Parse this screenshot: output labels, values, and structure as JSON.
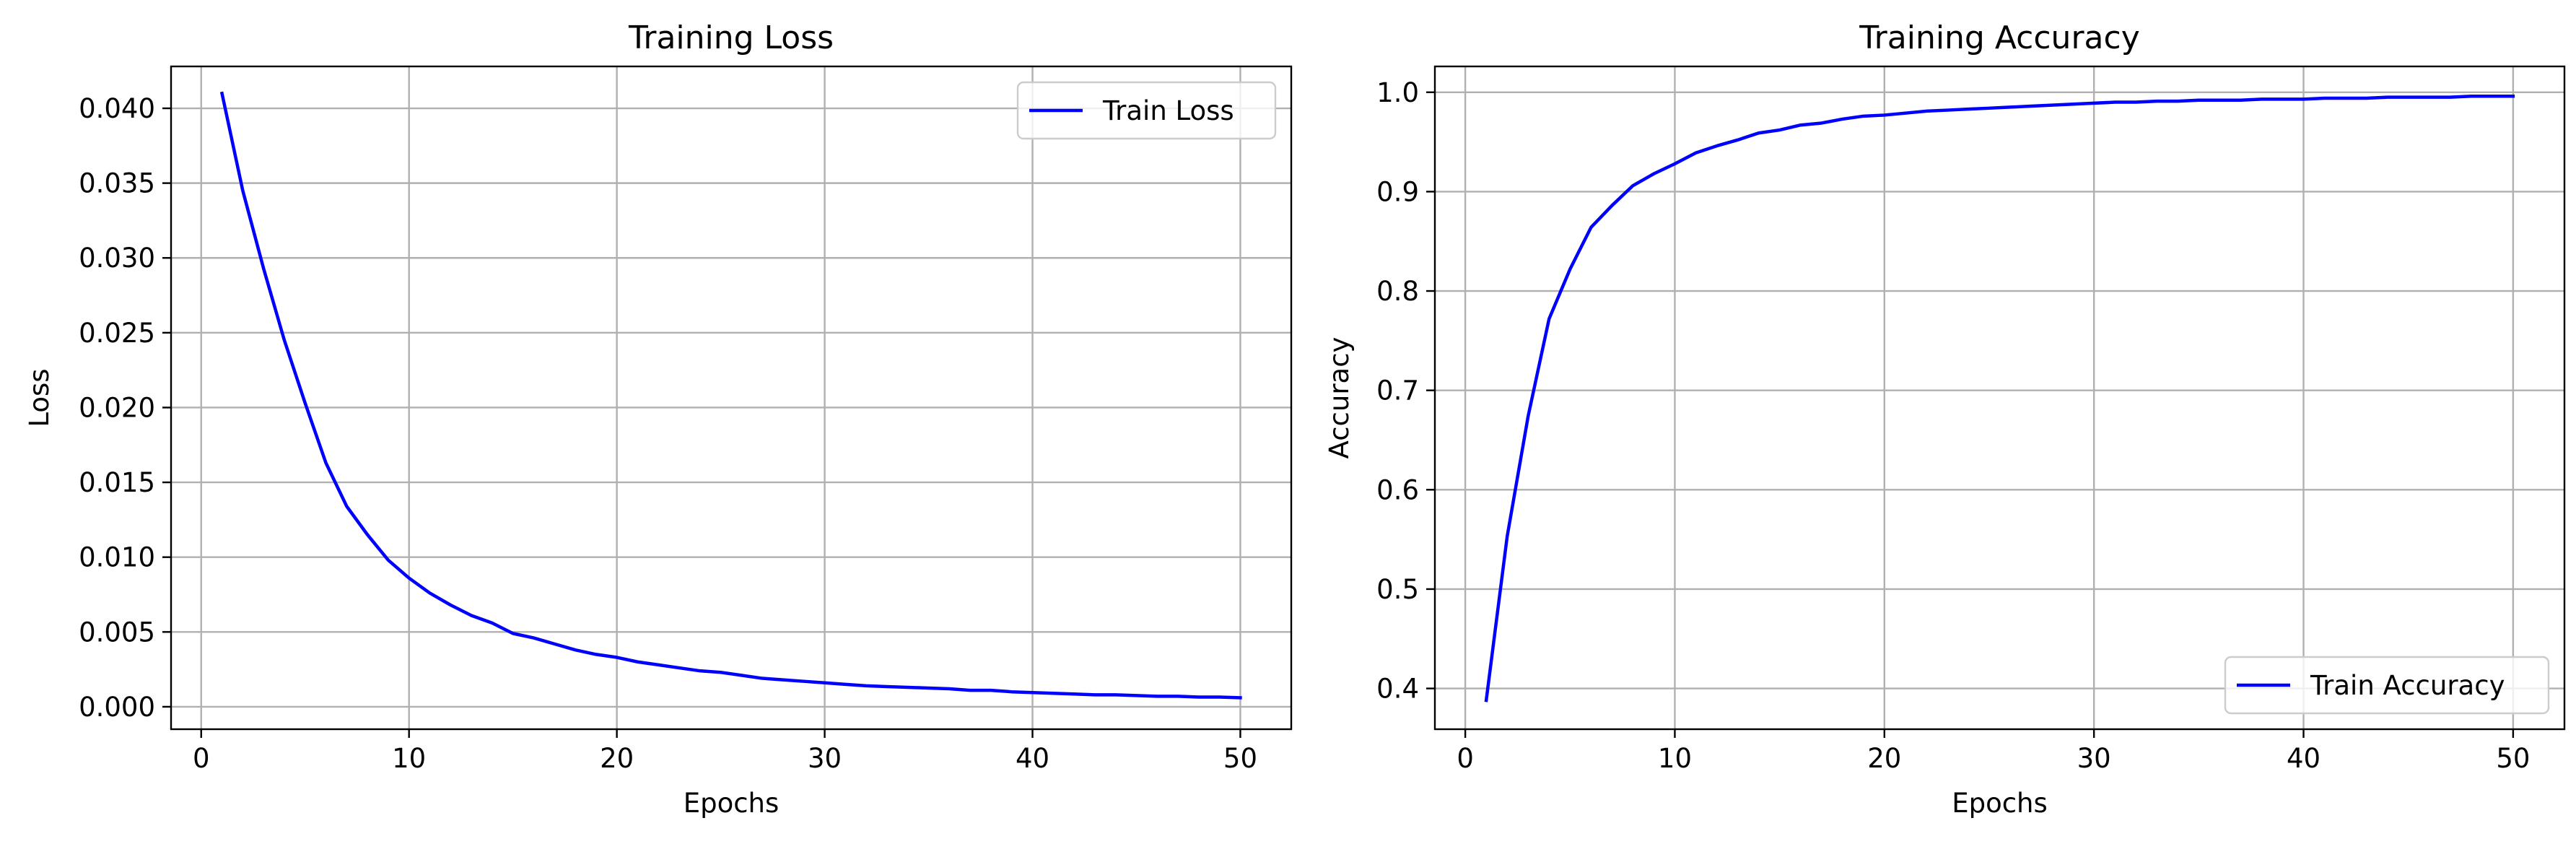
{
  "chart_data": [
    {
      "type": "line",
      "title": "Training Loss",
      "xlabel": "Epochs",
      "ylabel": "Loss",
      "xlim": [
        -1.45,
        52.45
      ],
      "ylim": [
        -0.0015,
        0.0428
      ],
      "xticks": [
        0,
        10,
        20,
        30,
        40,
        50
      ],
      "xtick_labels": [
        "0",
        "10",
        "20",
        "30",
        "40",
        "50"
      ],
      "yticks": [
        0.0,
        0.005,
        0.01,
        0.015,
        0.02,
        0.025,
        0.03,
        0.035,
        0.04
      ],
      "ytick_labels": [
        "0.000",
        "0.005",
        "0.010",
        "0.015",
        "0.020",
        "0.025",
        "0.030",
        "0.035",
        "0.040"
      ],
      "grid": true,
      "legend_position": "top-right",
      "x": [
        1,
        2,
        3,
        4,
        5,
        6,
        7,
        8,
        9,
        10,
        11,
        12,
        13,
        14,
        15,
        16,
        17,
        18,
        19,
        20,
        21,
        22,
        23,
        24,
        25,
        26,
        27,
        28,
        29,
        30,
        31,
        32,
        33,
        34,
        35,
        36,
        37,
        38,
        39,
        40,
        41,
        42,
        43,
        44,
        45,
        46,
        47,
        48,
        49,
        50
      ],
      "series": [
        {
          "name": "Train Loss",
          "color": "#0000ff",
          "values": [
            0.041,
            0.0345,
            0.0293,
            0.0245,
            0.0203,
            0.0163,
            0.0134,
            0.0115,
            0.0098,
            0.0086,
            0.0076,
            0.0068,
            0.0061,
            0.0056,
            0.0049,
            0.0046,
            0.0042,
            0.0038,
            0.0035,
            0.0033,
            0.003,
            0.0028,
            0.0026,
            0.0024,
            0.0023,
            0.0021,
            0.0019,
            0.0018,
            0.0017,
            0.0016,
            0.0015,
            0.0014,
            0.00135,
            0.0013,
            0.00125,
            0.0012,
            0.0011,
            0.0011,
            0.001,
            0.00095,
            0.0009,
            0.00085,
            0.0008,
            0.0008,
            0.00075,
            0.0007,
            0.0007,
            0.00065,
            0.00065,
            0.0006
          ]
        }
      ]
    },
    {
      "type": "line",
      "title": "Training Accuracy",
      "xlabel": "Epochs",
      "ylabel": "Accuracy",
      "xlim": [
        -1.45,
        52.45
      ],
      "ylim": [
        0.359,
        1.026
      ],
      "xticks": [
        0,
        10,
        20,
        30,
        40,
        50
      ],
      "xtick_labels": [
        "0",
        "10",
        "20",
        "30",
        "40",
        "50"
      ],
      "yticks": [
        0.4,
        0.5,
        0.6,
        0.7,
        0.8,
        0.9,
        1.0
      ],
      "ytick_labels": [
        "0.4",
        "0.5",
        "0.6",
        "0.7",
        "0.8",
        "0.9",
        "1.0"
      ],
      "grid": true,
      "legend_position": "bottom-right",
      "x": [
        1,
        2,
        3,
        4,
        5,
        6,
        7,
        8,
        9,
        10,
        11,
        12,
        13,
        14,
        15,
        16,
        17,
        18,
        19,
        20,
        21,
        22,
        23,
        24,
        25,
        26,
        27,
        28,
        29,
        30,
        31,
        32,
        33,
        34,
        35,
        36,
        37,
        38,
        39,
        40,
        41,
        42,
        43,
        44,
        45,
        46,
        47,
        48,
        49,
        50
      ],
      "series": [
        {
          "name": "Train Accuracy",
          "color": "#0000ff",
          "values": [
            0.388,
            0.553,
            0.674,
            0.772,
            0.822,
            0.864,
            0.886,
            0.906,
            0.918,
            0.928,
            0.939,
            0.946,
            0.952,
            0.959,
            0.962,
            0.967,
            0.969,
            0.973,
            0.976,
            0.977,
            0.979,
            0.981,
            0.982,
            0.983,
            0.984,
            0.985,
            0.986,
            0.987,
            0.988,
            0.989,
            0.99,
            0.99,
            0.991,
            0.991,
            0.992,
            0.992,
            0.992,
            0.993,
            0.993,
            0.993,
            0.994,
            0.994,
            0.994,
            0.995,
            0.995,
            0.995,
            0.995,
            0.996,
            0.996,
            0.996
          ]
        }
      ]
    }
  ]
}
